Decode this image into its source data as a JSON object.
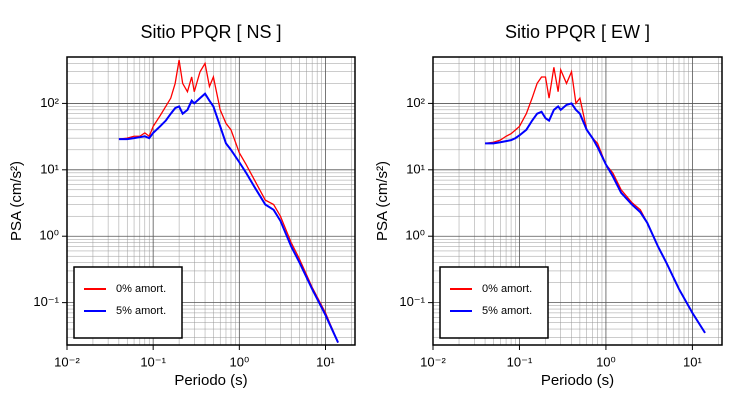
{
  "chart_data": [
    {
      "type": "line",
      "title": "Sitio PPQR [ NS ]",
      "xlabel": "Periodo (s)",
      "ylabel": "PSA (cm/s²)",
      "x": [
        0.04,
        0.05,
        0.06,
        0.07,
        0.08,
        0.09,
        0.1,
        0.12,
        0.14,
        0.16,
        0.18,
        0.2,
        0.22,
        0.25,
        0.28,
        0.3,
        0.35,
        0.4,
        0.45,
        0.5,
        0.6,
        0.7,
        0.8,
        1.0,
        1.2,
        1.5,
        2,
        2.5,
        3,
        4,
        5,
        7,
        10,
        14
      ],
      "series": [
        {
          "name": "0% amort.",
          "color": "#ff0000",
          "values": [
            29,
            30,
            32,
            32,
            36,
            32,
            45,
            65,
            90,
            120,
            200,
            450,
            200,
            150,
            250,
            150,
            300,
            400,
            180,
            250,
            80,
            50,
            40,
            18,
            12,
            7,
            3.5,
            3,
            2,
            0.8,
            0.45,
            0.17,
            0.07,
            0.025
          ]
        },
        {
          "name": "5% amort.",
          "color": "#0000ff",
          "values": [
            29,
            29,
            30,
            31,
            32,
            30,
            36,
            45,
            55,
            70,
            85,
            90,
            70,
            80,
            110,
            100,
            120,
            140,
            110,
            90,
            45,
            25,
            20,
            13,
            9,
            5.5,
            3,
            2.5,
            1.7,
            0.7,
            0.4,
            0.16,
            0.065,
            0.025
          ]
        }
      ],
      "xlim": [
        0.01,
        22
      ],
      "ylim": [
        0.023,
        500
      ],
      "xticks": [
        {
          "value": 0.01,
          "label": "10⁻²"
        },
        {
          "value": 0.1,
          "label": "10⁻¹"
        },
        {
          "value": 1,
          "label": "10⁰"
        },
        {
          "value": 10,
          "label": "10¹"
        }
      ],
      "yticks": [
        {
          "value": 0.1,
          "label": "10⁻¹"
        },
        {
          "value": 1,
          "label": "10⁰"
        },
        {
          "value": 10,
          "label": "10¹"
        },
        {
          "value": 100,
          "label": "10²"
        }
      ],
      "log_x": true,
      "log_y": true,
      "grid": true,
      "legend": "lower left"
    },
    {
      "type": "line",
      "title": "Sitio PPQR [ EW ]",
      "xlabel": "Periodo (s)",
      "ylabel": "PSA (cm/s²)",
      "x": [
        0.04,
        0.05,
        0.06,
        0.07,
        0.08,
        0.09,
        0.1,
        0.12,
        0.14,
        0.16,
        0.18,
        0.2,
        0.22,
        0.25,
        0.28,
        0.3,
        0.35,
        0.4,
        0.45,
        0.5,
        0.6,
        0.7,
        0.8,
        1.0,
        1.2,
        1.5,
        2,
        2.5,
        3,
        4,
        5,
        7,
        10,
        14
      ],
      "series": [
        {
          "name": "0% amort.",
          "color": "#ff0000",
          "values": [
            25,
            26,
            28,
            32,
            35,
            40,
            45,
            70,
            120,
            200,
            250,
            250,
            120,
            350,
            150,
            320,
            200,
            300,
            100,
            120,
            40,
            30,
            25,
            12,
            9,
            5,
            3.2,
            2.5,
            1.6,
            0.7,
            0.4,
            0.16,
            0.07,
            0.035
          ]
        },
        {
          "name": "5% amort.",
          "color": "#0000ff",
          "values": [
            25,
            25,
            26,
            27,
            28,
            30,
            33,
            40,
            55,
            70,
            75,
            60,
            55,
            80,
            90,
            80,
            95,
            100,
            80,
            70,
            40,
            30,
            22,
            12,
            8,
            4.5,
            3,
            2.3,
            1.6,
            0.7,
            0.4,
            0.16,
            0.07,
            0.035
          ]
        }
      ],
      "xlim": [
        0.01,
        22
      ],
      "ylim": [
        0.023,
        500
      ],
      "xticks": [
        {
          "value": 0.01,
          "label": "10⁻²"
        },
        {
          "value": 0.1,
          "label": "10⁻¹"
        },
        {
          "value": 1,
          "label": "10⁰"
        },
        {
          "value": 10,
          "label": "10¹"
        }
      ],
      "yticks": [
        {
          "value": 0.1,
          "label": "10⁻¹"
        },
        {
          "value": 1,
          "label": "10⁰"
        },
        {
          "value": 10,
          "label": "10¹"
        },
        {
          "value": 100,
          "label": "10²"
        }
      ],
      "log_x": true,
      "log_y": true,
      "grid": true,
      "legend": "lower left"
    }
  ]
}
